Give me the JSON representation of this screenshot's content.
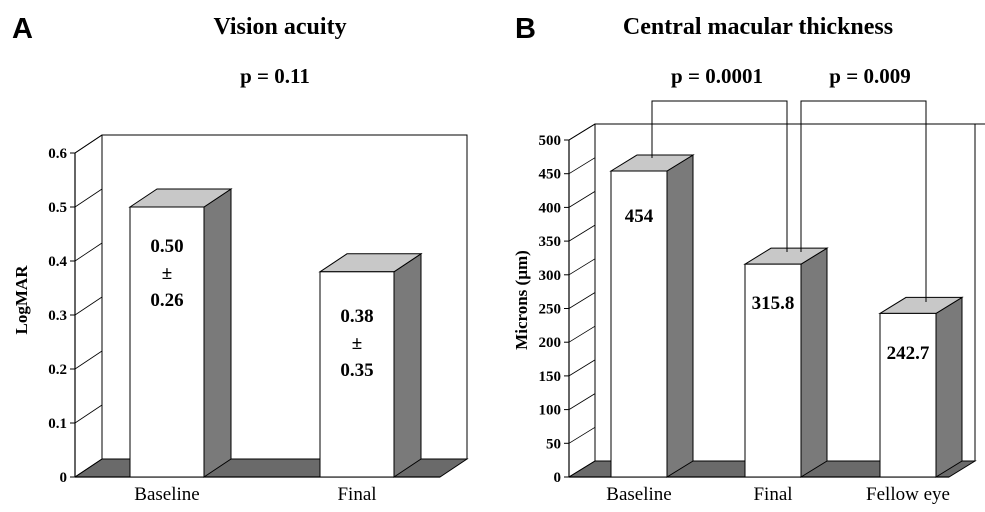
{
  "chart_data": [
    {
      "type": "bar",
      "panel_label": "A",
      "title": "Vision acuity",
      "annotation": "p = 0.11",
      "ylabel": "LogMAR",
      "xlabel": "",
      "ylim": [
        0,
        0.6
      ],
      "yticks": [
        "0",
        "0.1",
        "0.2",
        "0.3",
        "0.4",
        "0.5",
        "0.6"
      ],
      "categories": [
        "Baseline",
        "Final"
      ],
      "values": [
        0.5,
        0.38
      ],
      "bar_labels": [
        [
          "0.50",
          "±",
          "0.26"
        ],
        [
          "0.38",
          "±",
          "0.35"
        ]
      ],
      "colors": {
        "front": "#ffffff",
        "side": "#7a7a7a",
        "top": "#c8c8c8",
        "floor": "#6a6a6a"
      }
    },
    {
      "type": "bar",
      "panel_label": "B",
      "title": "Central macular thickness",
      "ylabel": "Microns (µm)",
      "xlabel": "",
      "ylim": [
        0,
        500
      ],
      "yticks": [
        "0",
        "50",
        "100",
        "150",
        "200",
        "250",
        "300",
        "350",
        "400",
        "450",
        "500"
      ],
      "categories": [
        "Baseline",
        "Final",
        "Fellow eye"
      ],
      "values": [
        454,
        315.8,
        242.7
      ],
      "bar_labels": [
        [
          "454"
        ],
        [
          "315.8"
        ],
        [
          "242.7"
        ]
      ],
      "comparisons": [
        {
          "label": "p = 0.0001",
          "from": 0,
          "to": 1
        },
        {
          "label": "p = 0.009",
          "from": 1,
          "to": 2
        }
      ],
      "colors": {
        "front": "#ffffff",
        "side": "#7a7a7a",
        "top": "#c8c8c8",
        "floor": "#6a6a6a"
      }
    }
  ]
}
